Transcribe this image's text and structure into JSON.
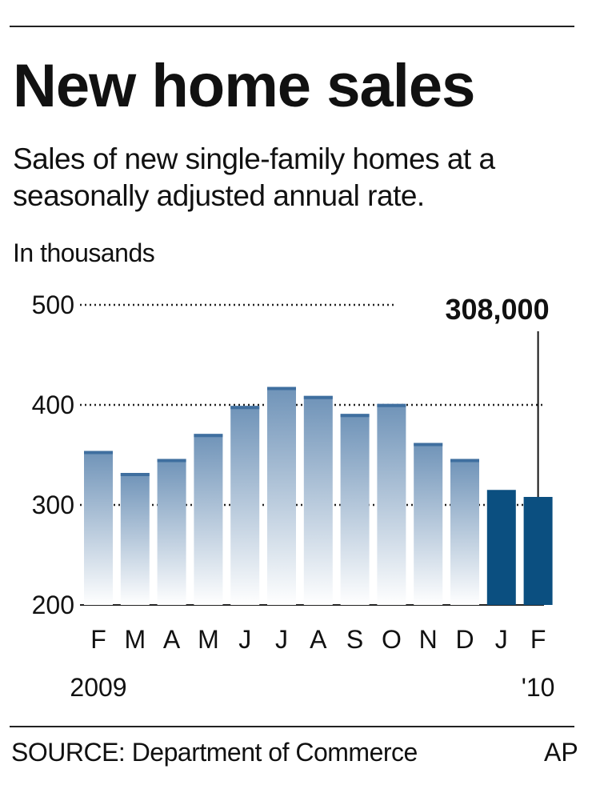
{
  "header": {
    "title": "New home sales",
    "subtitle": "Sales of new single-family homes at a seasonally adjusted annual rate.",
    "units": "In thousands"
  },
  "footer": {
    "source": "SOURCE: Department of Commerce",
    "credit": "AP"
  },
  "colors": {
    "bar_top": "#6f93b8",
    "bar_cap": "#3f6f9f",
    "highlight": "#0b4f80",
    "grid": "#222222"
  },
  "chart_data": {
    "type": "bar",
    "categories": [
      "F",
      "M",
      "A",
      "M",
      "J",
      "J",
      "A",
      "S",
      "O",
      "N",
      "D",
      "J",
      "F"
    ],
    "values": [
      354,
      332,
      346,
      371,
      399,
      418,
      409,
      391,
      401,
      362,
      346,
      315,
      308
    ],
    "highlight": [
      false,
      false,
      false,
      false,
      false,
      false,
      false,
      false,
      false,
      false,
      false,
      true,
      true
    ],
    "year_labels": [
      {
        "label": "2009",
        "category_index": 0
      },
      {
        "label": "'10",
        "category_index": 12
      }
    ],
    "yticks": [
      200,
      300,
      400,
      500
    ],
    "ylim": [
      200,
      500
    ],
    "grid": true,
    "annotation": {
      "label": "308,000",
      "category_index": 12
    }
  }
}
